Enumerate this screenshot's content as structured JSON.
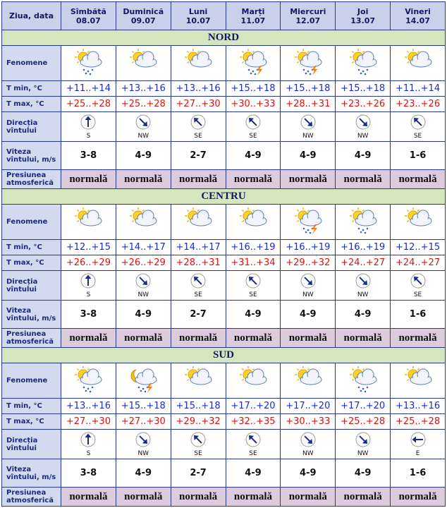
{
  "header": {
    "first": "Ziua, data",
    "days": [
      {
        "name": "Sîmbătă",
        "date": "08.07"
      },
      {
        "name": "Duminică",
        "date": "09.07"
      },
      {
        "name": "Luni",
        "date": "10.07"
      },
      {
        "name": "Marți",
        "date": "11.07"
      },
      {
        "name": "Miercuri",
        "date": "12.07"
      },
      {
        "name": "Joi",
        "date": "13.07"
      },
      {
        "name": "Vineri",
        "date": "14.07"
      }
    ]
  },
  "row_labels": {
    "phenomena": "Fenomene",
    "tmin": "T min, °C",
    "tmax": "T max, °C",
    "direction": "Direcția vîntului",
    "speed": "Viteza vîntului, m/s",
    "pressure": "Presiunea atmosferică"
  },
  "sections": [
    {
      "title": "NORD",
      "tmin": [
        "+11..+14",
        "+13..+16",
        "+13..+16",
        "+15..+18",
        "+15..+18",
        "+15..+18",
        "+11..+14"
      ],
      "tmax": [
        "+25..+28",
        "+25..+28",
        "+27..+30",
        "+30..+33",
        "+28..+31",
        "+23..+26",
        "+23..+26"
      ],
      "direction": [
        "S",
        "NW",
        "SE",
        "SE",
        "NW",
        "NW",
        "SE"
      ],
      "speed": [
        "3-8",
        "4-9",
        "2-7",
        "4-9",
        "4-9",
        "4-9",
        "1-6"
      ],
      "pressure": [
        "normală",
        "normală",
        "normală",
        "normală",
        "normală",
        "normală",
        "normală"
      ]
    },
    {
      "title": "CENTRU",
      "tmin": [
        "+12..+15",
        "+14..+17",
        "+14..+17",
        "+16..+19",
        "+16..+19",
        "+16..+19",
        "+12..+15"
      ],
      "tmax": [
        "+26..+29",
        "+26..+29",
        "+28..+31",
        "+31..+34",
        "+29..+32",
        "+24..+27",
        "+24..+27"
      ],
      "direction": [
        "S",
        "NW",
        "SE",
        "SE",
        "NW",
        "NW",
        "SE"
      ],
      "speed": [
        "3-8",
        "4-9",
        "2-7",
        "4-9",
        "4-9",
        "4-9",
        "1-6"
      ],
      "pressure": [
        "normală",
        "normală",
        "normală",
        "normală",
        "normală",
        "normală",
        "normală"
      ]
    },
    {
      "title": "SUD",
      "tmin": [
        "+13..+16",
        "+15..+18",
        "+15..+18",
        "+17..+20",
        "+17..+20",
        "+17..+20",
        "+13..+16"
      ],
      "tmax": [
        "+27..+30",
        "+27..+30",
        "+29..+32",
        "+32..+35",
        "+30..+33",
        "+25..+28",
        "+25..+28"
      ],
      "direction": [
        "S",
        "NW",
        "SE",
        "SE",
        "NW",
        "NW",
        "E"
      ],
      "speed": [
        "3-8",
        "4-9",
        "2-7",
        "4-9",
        "4-9",
        "4-9",
        "1-6"
      ],
      "pressure": [
        "normală",
        "normală",
        "normală",
        "normală",
        "normală",
        "normală",
        "normală"
      ]
    }
  ]
}
